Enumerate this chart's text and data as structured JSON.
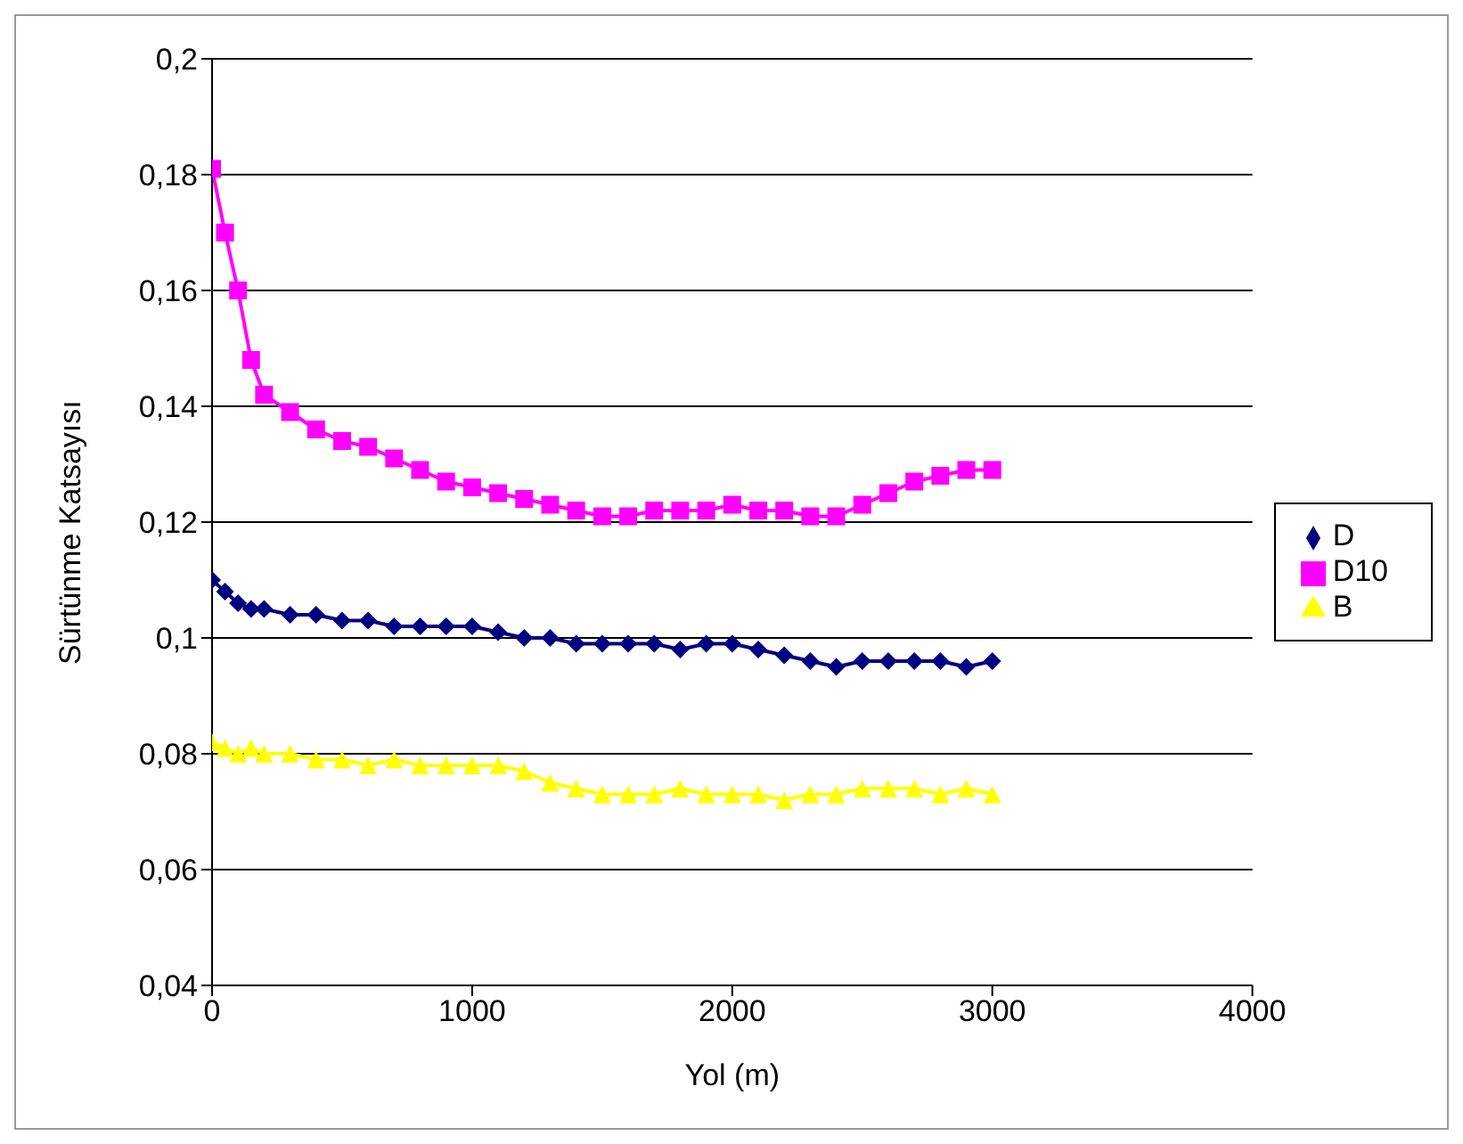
{
  "chart_data": {
    "type": "line",
    "xlabel": "Yol (m)",
    "ylabel": "Sürtünme Katsayısı",
    "x": [
      0,
      50,
      100,
      150,
      200,
      300,
      400,
      500,
      600,
      700,
      800,
      900,
      1000,
      1100,
      1200,
      1300,
      1400,
      1500,
      1600,
      1700,
      1800,
      1900,
      2000,
      2100,
      2200,
      2300,
      2400,
      2500,
      2600,
      2700,
      2800,
      2900,
      3000
    ],
    "series": [
      {
        "name": "D",
        "color": "#000080",
        "marker": "diamond",
        "values": [
          0.11,
          0.108,
          0.106,
          0.105,
          0.105,
          0.104,
          0.104,
          0.103,
          0.103,
          0.102,
          0.102,
          0.102,
          0.102,
          0.101,
          0.1,
          0.1,
          0.099,
          0.099,
          0.099,
          0.099,
          0.098,
          0.099,
          0.099,
          0.098,
          0.097,
          0.096,
          0.095,
          0.096,
          0.096,
          0.096,
          0.096,
          0.095,
          0.096
        ]
      },
      {
        "name": "D10",
        "color": "#ff00ff",
        "marker": "square",
        "values": [
          0.181,
          0.17,
          0.16,
          0.148,
          0.142,
          0.139,
          0.136,
          0.134,
          0.133,
          0.131,
          0.129,
          0.127,
          0.126,
          0.125,
          0.124,
          0.123,
          0.122,
          0.121,
          0.121,
          0.122,
          0.122,
          0.122,
          0.123,
          0.122,
          0.122,
          0.121,
          0.121,
          0.123,
          0.125,
          0.127,
          0.128,
          0.129,
          0.129
        ]
      },
      {
        "name": "B",
        "color": "#ffff00",
        "marker": "triangle",
        "values": [
          0.082,
          0.081,
          0.08,
          0.081,
          0.08,
          0.08,
          0.079,
          0.079,
          0.078,
          0.079,
          0.078,
          0.078,
          0.078,
          0.078,
          0.077,
          0.075,
          0.074,
          0.073,
          0.073,
          0.073,
          0.074,
          0.073,
          0.073,
          0.073,
          0.072,
          0.073,
          0.073,
          0.074,
          0.074,
          0.074,
          0.073,
          0.074,
          0.073
        ]
      }
    ],
    "xlim": [
      0,
      4000
    ],
    "xticks": [
      0,
      1000,
      2000,
      3000,
      4000
    ],
    "ylim": [
      0.04,
      0.2
    ],
    "yticks": [
      {
        "value": 0.04,
        "label": "0,04"
      },
      {
        "value": 0.06,
        "label": "0,06"
      },
      {
        "value": 0.08,
        "label": "0,08"
      },
      {
        "value": 0.1,
        "label": "0,1"
      },
      {
        "value": 0.12,
        "label": "0,12"
      },
      {
        "value": 0.14,
        "label": "0,14"
      },
      {
        "value": 0.16,
        "label": "0,16"
      },
      {
        "value": 0.18,
        "label": "0,18"
      },
      {
        "value": 0.2,
        "label": "0,2"
      }
    ],
    "grid": "y",
    "legend": "right",
    "line_style": "solid"
  }
}
